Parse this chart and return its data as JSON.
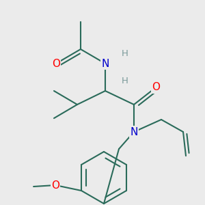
{
  "bg_color": "#ebebeb",
  "bond_color": "#2a6b5a",
  "bond_width": 1.5,
  "atom_colors": {
    "O": "#ff0000",
    "N": "#0000cc",
    "H": "#7a9a9a",
    "C": "#2a6b5a"
  },
  "font_size_atoms": 11,
  "font_size_small": 9.5,
  "scale": 1.0
}
